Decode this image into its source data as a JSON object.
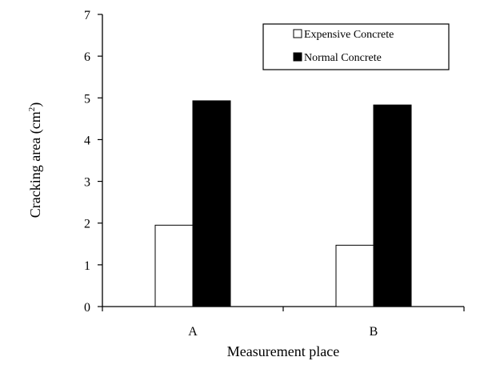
{
  "chart_data": {
    "type": "bar",
    "categories": [
      "A",
      "B"
    ],
    "series": [
      {
        "name": "Expensive Concrete",
        "values": [
          1.95,
          1.47
        ],
        "color": "#ffffff"
      },
      {
        "name": "Normal Concrete",
        "values": [
          4.93,
          4.83
        ],
        "color": "#000000"
      }
    ],
    "xlabel": "Measurement place",
    "ylabel": "Cracking area (cm",
    "ylabel_sup": "2",
    "ylabel_end": ")",
    "ylim": [
      0,
      7
    ],
    "yticks": [
      0,
      1,
      2,
      3,
      4,
      5,
      6,
      7
    ],
    "grid": false,
    "legend_position": "top-right"
  }
}
